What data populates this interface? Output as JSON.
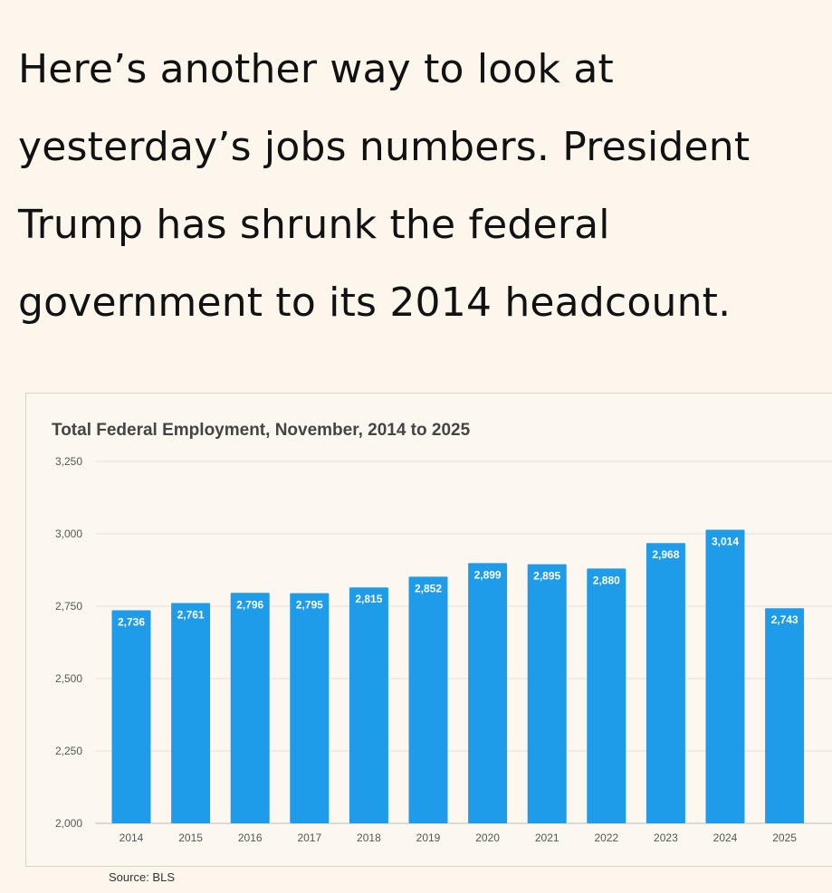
{
  "post": {
    "lines": [
      "Here’s another way to look at",
      "yesterday’s jobs numbers. President",
      "Trump has shrunk the federal",
      "government to its 2014 headcount."
    ]
  },
  "chart_data": {
    "type": "bar",
    "title": "Total Federal Employment, November, 2014 to 2025",
    "xlabel": "",
    "ylabel": "",
    "categories": [
      "2014",
      "2015",
      "2016",
      "2017",
      "2018",
      "2019",
      "2020",
      "2021",
      "2022",
      "2023",
      "2024",
      "2025"
    ],
    "values": [
      2736,
      2761,
      2796,
      2795,
      2815,
      2852,
      2899,
      2895,
      2880,
      2968,
      3014,
      2743
    ],
    "value_labels": [
      "2,736",
      "2,761",
      "2,796",
      "2,795",
      "2,815",
      "2,852",
      "2,899",
      "2,895",
      "2,880",
      "2,968",
      "3,014",
      "2,743"
    ],
    "ylim": [
      2000,
      3250
    ],
    "yticks": [
      2000,
      2250,
      2500,
      2750,
      3000,
      3250
    ],
    "ytick_labels": [
      "2,000",
      "2,250",
      "2,500",
      "2,750",
      "3,000",
      "3,250"
    ],
    "grid": true,
    "bar_color": "#1e9be9",
    "source": "Source: BLS"
  }
}
